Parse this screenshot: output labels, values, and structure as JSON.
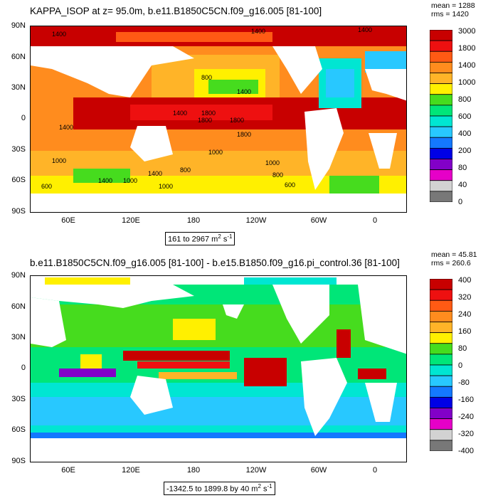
{
  "panels": [
    {
      "title": "KAPPA_ISOP at z=  95.0m, b.e11.B1850C5CN.f09_g16.005 [81-100]",
      "stats": {
        "mean": "mean = 1288",
        "rms": "rms = 1420"
      },
      "range_text": "161 to 2967 m",
      "range_unit_sup": "2",
      "range_unit_tail": " s",
      "range_unit_sup2": "-1",
      "y_ticks": [
        "90N",
        "60N",
        "30N",
        "0",
        "30S",
        "60S",
        "90S"
      ],
      "x_ticks": [
        "60E",
        "120E",
        "180",
        "120W",
        "60W",
        "0"
      ],
      "colorbar_labels": [
        "3000",
        "1800",
        "1400",
        "1000",
        "800",
        "600",
        "400",
        "200",
        "80",
        "40",
        "0"
      ],
      "colorbar_colors": [
        "#c80000",
        "#ee1010",
        "#ff5a14",
        "#ff8c1e",
        "#ffb428",
        "#fff000",
        "#46dc1e",
        "#00e678",
        "#00e6d2",
        "#28c8ff",
        "#1478ff",
        "#0000e6",
        "#8200c8",
        "#e600c8",
        "#d2d2d2",
        "#787878"
      ],
      "contour_labels": [
        "1400",
        "1400",
        "1400",
        "1400",
        "800",
        "1400",
        "1800",
        "1400",
        "1800",
        "1800",
        "1800",
        "1000",
        "1000",
        "1000",
        "800",
        "1400",
        "1000",
        "800",
        "600",
        "1000",
        "1400",
        "600"
      ]
    },
    {
      "title": "b.e11.B1850C5CN.f09_g16.005 [81-100] - b.e15.B1850.f09_g16.pi_control.36 [81-100]",
      "stats": {
        "mean": "mean = 45.81",
        "rms": "rms = 260.6"
      },
      "range_text": "-1342.5 to 1899.8 by 40 m",
      "range_unit_sup": "2",
      "range_unit_tail": " s",
      "range_unit_sup2": "-1",
      "y_ticks": [
        "90N",
        "60N",
        "30N",
        "0",
        "30S",
        "60S",
        "90S"
      ],
      "x_ticks": [
        "60E",
        "120E",
        "180",
        "120W",
        "60W",
        "0"
      ],
      "colorbar_labels": [
        "400",
        "320",
        "240",
        "160",
        "80",
        "0",
        "-80",
        "-160",
        "-240",
        "-320",
        "-400"
      ],
      "colorbar_colors": [
        "#c80000",
        "#ee1010",
        "#ff5a14",
        "#ff8c1e",
        "#ffb428",
        "#fff000",
        "#46dc1e",
        "#00e678",
        "#00e6d2",
        "#28c8ff",
        "#1478ff",
        "#0000e6",
        "#8200c8",
        "#e600c8",
        "#d2d2d2",
        "#787878"
      ]
    }
  ]
}
